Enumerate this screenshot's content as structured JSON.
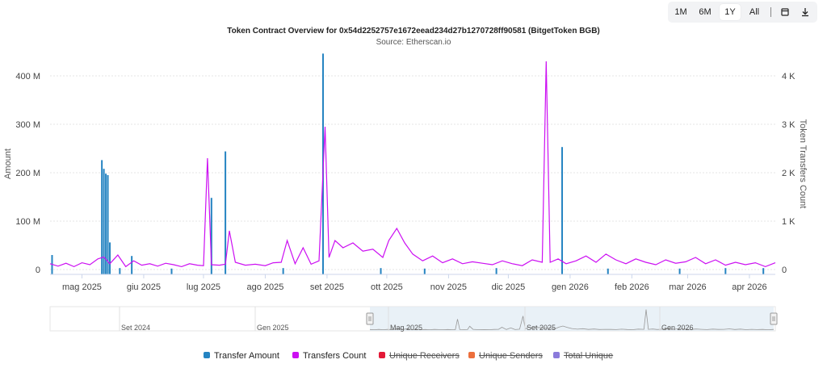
{
  "range_selector": {
    "buttons": [
      {
        "label": "1M",
        "active": false
      },
      {
        "label": "6M",
        "active": false
      },
      {
        "label": "1Y",
        "active": true
      },
      {
        "label": "All",
        "active": false
      }
    ],
    "calendar_icon": "calendar-icon",
    "download_icon": "download-icon"
  },
  "colors": {
    "transfer_amount": "#2584c2",
    "transfers_count": "#cc0ff2",
    "unique_receivers": "#e31937",
    "unique_senders": "#ec6f3c",
    "total_unique": "#8b7bdb",
    "navigator_mask": "#e3edf5"
  },
  "chart_data": {
    "type": "line",
    "title": "Token Contract Overview for 0x54d2252757e1672eead234d27b1270728ff90581 (BitgetToken BGB)",
    "subtitle": "Source: Etherscan.io",
    "ylabel": "Amount",
    "ylabel_right": "Token Transfers Count",
    "ylim": [
      0,
      440000000
    ],
    "ylim_right": [
      0,
      4400
    ],
    "y_ticks": [
      "0",
      "100 M",
      "200 M",
      "300 M",
      "400 M"
    ],
    "y_ticks_right": [
      "0",
      "1 K",
      "2 K",
      "3 K",
      "4 K"
    ],
    "xlim": [
      "2025-04-15",
      "2026-04-14"
    ],
    "x_ticks": [
      {
        "label": "mag 2025",
        "date": "2025-05-01"
      },
      {
        "label": "giu 2025",
        "date": "2025-06-01"
      },
      {
        "label": "lug 2025",
        "date": "2025-07-01"
      },
      {
        "label": "ago 2025",
        "date": "2025-08-01"
      },
      {
        "label": "set 2025",
        "date": "2025-09-01"
      },
      {
        "label": "ott 2025",
        "date": "2025-10-01"
      },
      {
        "label": "nov 2025",
        "date": "2025-11-01"
      },
      {
        "label": "dic 2025",
        "date": "2025-12-01"
      },
      {
        "label": "gen 2026",
        "date": "2026-01-01"
      },
      {
        "label": "feb 2026",
        "date": "2026-02-01"
      },
      {
        "label": "mar 2026",
        "date": "2026-03-01"
      },
      {
        "label": "apr 2026",
        "date": "2026-04-01"
      }
    ],
    "grid": true,
    "legend_position": "bottom",
    "series": [
      {
        "name": "Transfer Amount",
        "kind": "column",
        "axis": "left",
        "visible": true,
        "points": [
          [
            "2025-04-16",
            30000000
          ],
          [
            "2025-05-11",
            226000000
          ],
          [
            "2025-05-12",
            208000000
          ],
          [
            "2025-05-13",
            198000000
          ],
          [
            "2025-05-14",
            195000000
          ],
          [
            "2025-05-15",
            56000000
          ],
          [
            "2025-05-26",
            28000000
          ],
          [
            "2025-07-05",
            148000000
          ],
          [
            "2025-07-12",
            244000000
          ],
          [
            "2025-08-30",
            446000000
          ],
          [
            "2025-12-28",
            253000000
          ],
          [
            "2025-05-20",
            3000000
          ],
          [
            "2025-06-15",
            2000000
          ],
          [
            "2025-08-10",
            3000000
          ],
          [
            "2025-09-28",
            3000000
          ],
          [
            "2025-10-20",
            2000000
          ],
          [
            "2025-11-25",
            3000000
          ],
          [
            "2026-01-20",
            2000000
          ],
          [
            "2026-02-25",
            2000000
          ],
          [
            "2026-03-20",
            3000000
          ],
          [
            "2026-04-08",
            3000000
          ]
        ]
      },
      {
        "name": "Transfers Count",
        "kind": "line",
        "axis": "right",
        "visible": true,
        "points": [
          [
            "2025-04-15",
            120
          ],
          [
            "2025-04-19",
            70
          ],
          [
            "2025-04-23",
            130
          ],
          [
            "2025-04-27",
            60
          ],
          [
            "2025-05-01",
            140
          ],
          [
            "2025-05-05",
            100
          ],
          [
            "2025-05-09",
            220
          ],
          [
            "2025-05-12",
            260
          ],
          [
            "2025-05-15",
            120
          ],
          [
            "2025-05-19",
            300
          ],
          [
            "2025-05-23",
            60
          ],
          [
            "2025-05-27",
            180
          ],
          [
            "2025-05-31",
            90
          ],
          [
            "2025-06-04",
            120
          ],
          [
            "2025-06-08",
            70
          ],
          [
            "2025-06-12",
            130
          ],
          [
            "2025-06-16",
            100
          ],
          [
            "2025-06-20",
            60
          ],
          [
            "2025-06-24",
            120
          ],
          [
            "2025-06-28",
            90
          ],
          [
            "2025-07-01",
            80
          ],
          [
            "2025-07-03",
            2300
          ],
          [
            "2025-07-05",
            100
          ],
          [
            "2025-07-09",
            90
          ],
          [
            "2025-07-12",
            110
          ],
          [
            "2025-07-14",
            800
          ],
          [
            "2025-07-17",
            150
          ],
          [
            "2025-07-22",
            90
          ],
          [
            "2025-07-27",
            110
          ],
          [
            "2025-08-01",
            80
          ],
          [
            "2025-08-05",
            140
          ],
          [
            "2025-08-09",
            150
          ],
          [
            "2025-08-12",
            600
          ],
          [
            "2025-08-16",
            120
          ],
          [
            "2025-08-20",
            450
          ],
          [
            "2025-08-24",
            110
          ],
          [
            "2025-08-28",
            180
          ],
          [
            "2025-08-31",
            2950
          ],
          [
            "2025-09-02",
            250
          ],
          [
            "2025-09-05",
            600
          ],
          [
            "2025-09-09",
            450
          ],
          [
            "2025-09-14",
            550
          ],
          [
            "2025-09-19",
            380
          ],
          [
            "2025-09-24",
            420
          ],
          [
            "2025-09-29",
            250
          ],
          [
            "2025-10-02",
            600
          ],
          [
            "2025-10-06",
            850
          ],
          [
            "2025-10-10",
            550
          ],
          [
            "2025-10-14",
            320
          ],
          [
            "2025-10-19",
            180
          ],
          [
            "2025-10-24",
            280
          ],
          [
            "2025-10-29",
            140
          ],
          [
            "2025-11-03",
            220
          ],
          [
            "2025-11-08",
            120
          ],
          [
            "2025-11-13",
            160
          ],
          [
            "2025-11-18",
            130
          ],
          [
            "2025-11-23",
            100
          ],
          [
            "2025-11-28",
            180
          ],
          [
            "2025-12-03",
            120
          ],
          [
            "2025-12-08",
            80
          ],
          [
            "2025-12-13",
            200
          ],
          [
            "2025-12-18",
            150
          ],
          [
            "2025-12-20",
            4300
          ],
          [
            "2025-12-22",
            150
          ],
          [
            "2025-12-26",
            220
          ],
          [
            "2025-12-30",
            120
          ],
          [
            "2026-01-04",
            180
          ],
          [
            "2026-01-09",
            280
          ],
          [
            "2026-01-14",
            150
          ],
          [
            "2026-01-19",
            320
          ],
          [
            "2026-01-24",
            200
          ],
          [
            "2026-01-29",
            120
          ],
          [
            "2026-02-03",
            220
          ],
          [
            "2026-02-08",
            150
          ],
          [
            "2026-02-13",
            100
          ],
          [
            "2026-02-18",
            200
          ],
          [
            "2026-02-23",
            130
          ],
          [
            "2026-02-28",
            160
          ],
          [
            "2026-03-05",
            250
          ],
          [
            "2026-03-10",
            120
          ],
          [
            "2026-03-15",
            200
          ],
          [
            "2026-03-20",
            90
          ],
          [
            "2026-03-25",
            150
          ],
          [
            "2026-03-30",
            100
          ],
          [
            "2026-04-04",
            140
          ],
          [
            "2026-04-09",
            60
          ],
          [
            "2026-04-14",
            140
          ]
        ]
      },
      {
        "name": "Unique Receivers",
        "kind": "line",
        "axis": "right",
        "visible": false,
        "points": []
      },
      {
        "name": "Unique Senders",
        "kind": "line",
        "axis": "right",
        "visible": false,
        "points": []
      },
      {
        "name": "Total Unique",
        "kind": "line",
        "axis": "right",
        "visible": false,
        "points": []
      }
    ],
    "navigator": {
      "labels": [
        "Set 2024",
        "Gen 2025",
        "Mag 2025",
        "Set 2025",
        "Gen 2026"
      ],
      "selected_range": [
        "2025-04-15",
        "2026-04-14"
      ]
    }
  }
}
